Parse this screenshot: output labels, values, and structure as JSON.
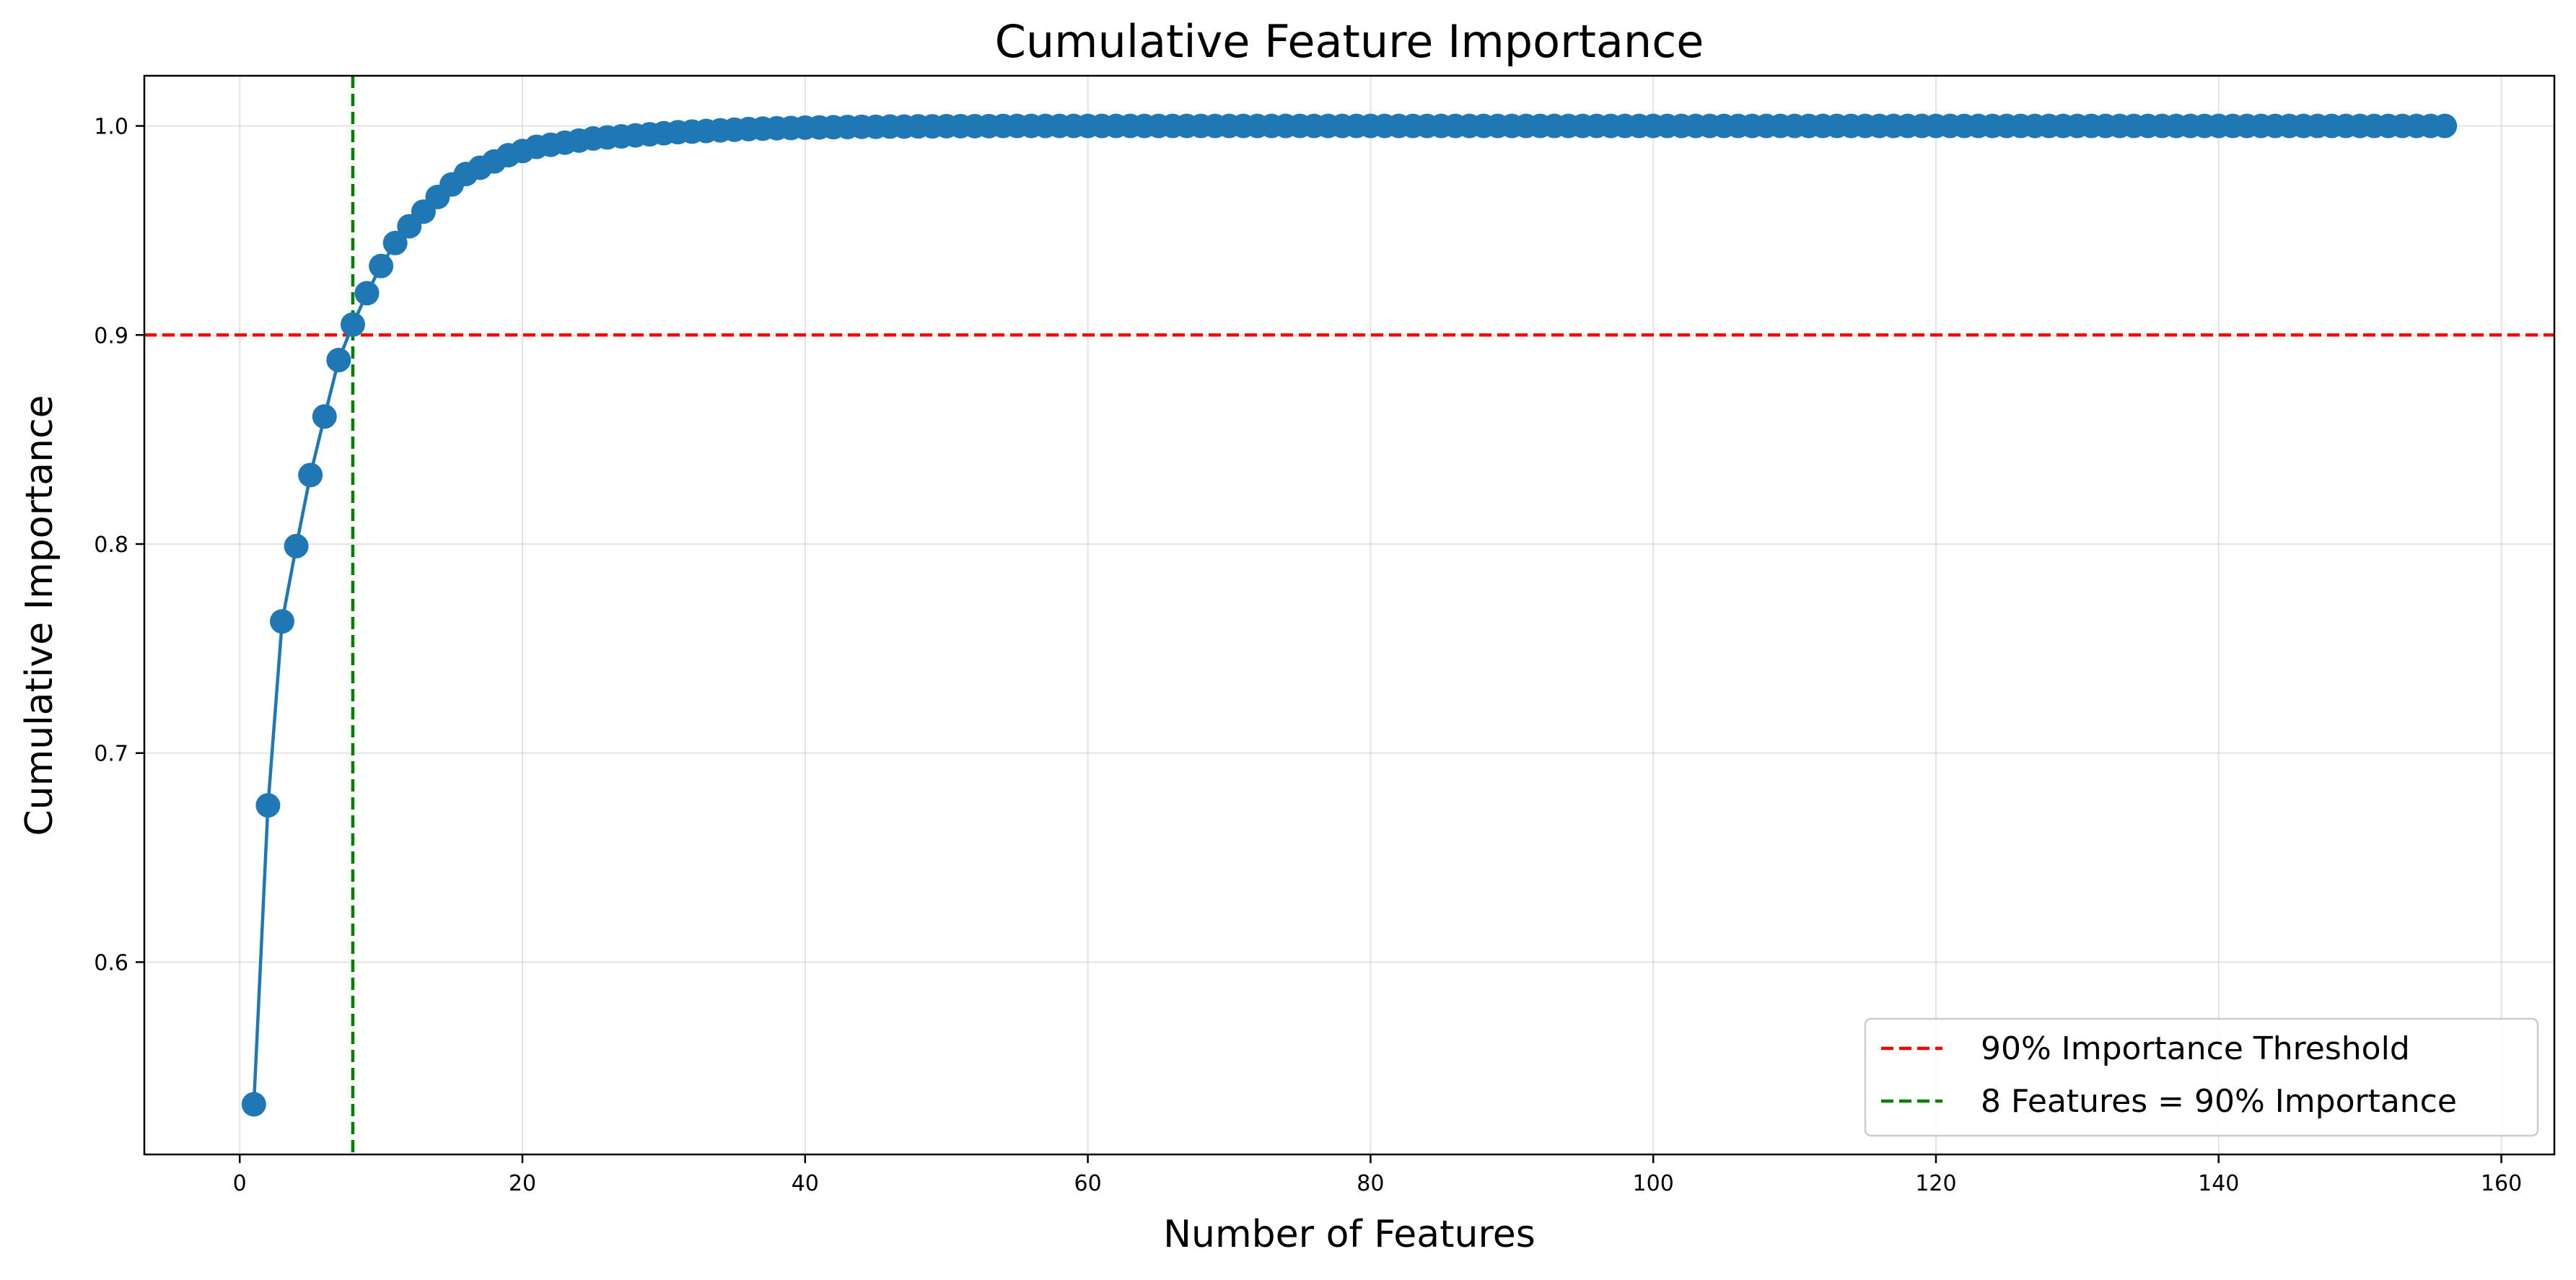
{
  "chart_data": {
    "type": "line",
    "title": "Cumulative Feature Importance",
    "xlabel": "Number of Features",
    "ylabel": "Cumulative Importance",
    "xlim": [
      -6.75,
      163.75
    ],
    "ylim": [
      0.508,
      1.024
    ],
    "xticks": [
      0,
      20,
      40,
      60,
      80,
      100,
      120,
      140,
      160
    ],
    "yticks": [
      0.6,
      0.7,
      0.8,
      0.9,
      1.0
    ],
    "ytick_labels": [
      "0.6",
      "0.7",
      "0.8",
      "0.9",
      "1.0"
    ],
    "grid": true,
    "legend_position": "bottom-right",
    "n_features": 156,
    "initial_values": [
      0.532,
      0.675,
      0.763,
      0.799,
      0.833,
      0.861,
      0.888,
      0.905,
      0.92,
      0.933,
      0.944,
      0.952,
      0.959,
      0.966,
      0.972,
      0.977,
      0.98,
      0.983,
      0.986,
      0.988,
      0.99,
      0.991,
      0.992,
      0.993,
      0.994,
      0.9945,
      0.995,
      0.9955,
      0.996,
      0.9965,
      0.997,
      0.9973,
      0.9976,
      0.9979,
      0.9982,
      0.9985,
      0.9987,
      0.9989,
      0.999,
      0.9992,
      0.9993,
      0.9994,
      0.9995,
      0.9996,
      0.9996,
      0.9997,
      0.9997,
      0.9998,
      0.9998,
      0.9999,
      0.9999,
      0.9999,
      0.9999,
      1.0
    ],
    "plateau_value": 1.0,
    "series": [
      {
        "name": "",
        "color": "#1f77b4",
        "marker": "circle"
      }
    ],
    "reference_lines": [
      {
        "orientation": "horizontal",
        "value": 0.9,
        "color": "#ff0000",
        "style": "dashed",
        "label": "90% Importance Threshold"
      },
      {
        "orientation": "vertical",
        "value": 8,
        "color": "#008000",
        "style": "dashed",
        "label": "8 Features = 90% Importance"
      }
    ]
  }
}
